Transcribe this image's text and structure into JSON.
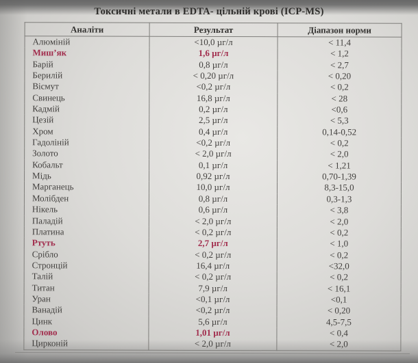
{
  "document": {
    "title": "Токсичні метали в  EDTA- цільній крові (ICP-MS)",
    "flag_color": "#a12c4c",
    "columns": [
      "Аналіти",
      "Результат",
      "Діапазон норми"
    ],
    "rows": [
      {
        "analyte": "Алюміній",
        "result": "<10,0 µг/л",
        "range": "< 11,4",
        "flagged": false
      },
      {
        "analyte": "Миш’як",
        "result": "1,6  µг/л",
        "range": "< 1,2",
        "flagged": true
      },
      {
        "analyte": "Барій",
        "result": "0,8  µг/л",
        "range": "< 2,7",
        "flagged": false
      },
      {
        "analyte": "Берилій",
        "result": "< 0,20 µг/л",
        "range": "< 0,20",
        "flagged": false
      },
      {
        "analyte": "Вісмут",
        "result": "<0,2 µг/л",
        "range": "< 0,2",
        "flagged": false
      },
      {
        "analyte": "Свинець",
        "result": "16,8 µг/л",
        "range": "< 28",
        "flagged": false
      },
      {
        "analyte": "Кадмій",
        "result": "0,2 µг/л",
        "range": "<0,6",
        "flagged": false
      },
      {
        "analyte": "Цезій",
        "result": "2,5 µг/л",
        "range": "< 5,3",
        "flagged": false
      },
      {
        "analyte": "Хром",
        "result": "0,4 µг/л",
        "range": "0,14-0,52",
        "flagged": false
      },
      {
        "analyte": "Гадоліній",
        "result": "<0,2 µг/л",
        "range": "< 0,2",
        "flagged": false
      },
      {
        "analyte": "Золото",
        "result": "< 2,0 µг/л",
        "range": "< 2,0",
        "flagged": false
      },
      {
        "analyte": "Кобальт",
        "result": "0,1 µг/л",
        "range": "< 1,21",
        "flagged": false
      },
      {
        "analyte": "Мідь",
        "result": "0,92 µг/л",
        "range": "0,70-1,39",
        "flagged": false
      },
      {
        "analyte": "Марганець",
        "result": "10,0 µг/л",
        "range": "8,3-15,0",
        "flagged": false
      },
      {
        "analyte": "Молібден",
        "result": "0,8 µг/л",
        "range": "0,3-1,3",
        "flagged": false
      },
      {
        "analyte": "Нікель",
        "result": "0,6 µг/л",
        "range": "< 3,8",
        "flagged": false
      },
      {
        "analyte": "Паладій",
        "result": "< 2,0 µг/л",
        "range": "< 2,0",
        "flagged": false
      },
      {
        "analyte": "Платина",
        "result": "< 0,2 µг/л",
        "range": "< 0,2",
        "flagged": false
      },
      {
        "analyte": "Ртуть",
        "result": "2,7 µг/л",
        "range": "< 1,0",
        "flagged": true
      },
      {
        "analyte": "Срібло",
        "result": "< 0,2 µг/л",
        "range": "< 0,2",
        "flagged": false
      },
      {
        "analyte": "Стронцій",
        "result": "16,4 µг/л",
        "range": "<32,0",
        "flagged": false
      },
      {
        "analyte": "Талій",
        "result": "< 0,2 µг/л",
        "range": "< 0,2",
        "flagged": false
      },
      {
        "analyte": "Титан",
        "result": "7,9 µг/л",
        "range": "< 16,1",
        "flagged": false
      },
      {
        "analyte": "Уран",
        "result": "<0,1 µг/л",
        "range": "<0,1",
        "flagged": false
      },
      {
        "analyte": "Ванадій",
        "result": "<0,2 µг/л",
        "range": "< 0,20",
        "flagged": false
      },
      {
        "analyte": "Цинк",
        "result": "5,6 µг/л",
        "range": "4,5-7,5",
        "flagged": false
      },
      {
        "analyte": "Олово",
        "result": "1,01 µг/л",
        "range": "< 0,4",
        "flagged": true
      },
      {
        "analyte": "Цирконій",
        "result": "< 2,0 µг/л",
        "range": "< 2,0",
        "flagged": false
      }
    ]
  }
}
